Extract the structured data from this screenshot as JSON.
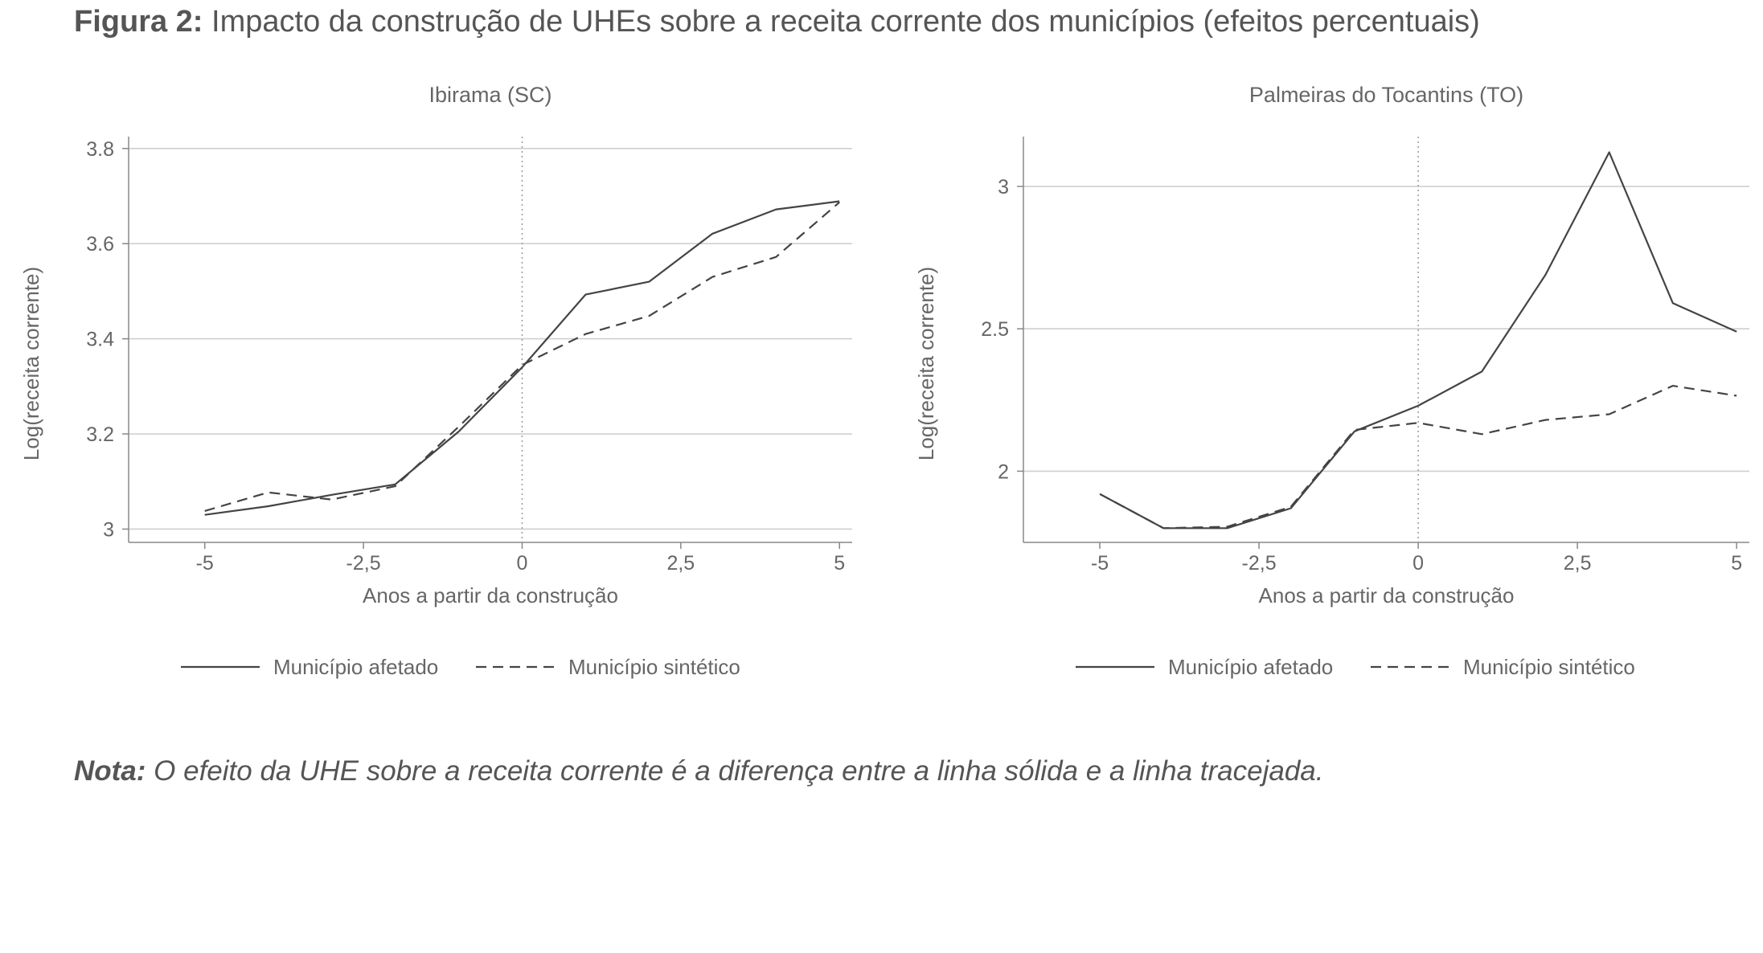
{
  "figure": {
    "title_label": "Figura 2:",
    "title_text": "Impacto da construção de UHEs sobre a receita corrente dos municípios (efeitos percentuais)"
  },
  "note": {
    "label": "Nota:",
    "text": "O efeito da UHE sobre a receita corrente é a diferença entre a linha sólida e a linha tracejada."
  },
  "chart_data": [
    {
      "type": "line",
      "title": "Ibirama (SC)",
      "xlabel": "Anos a partir da construção",
      "ylabel": "Log(receita corrente)",
      "xlim": [
        -6.2,
        5.2
      ],
      "ylim": [
        2.972,
        3.825
      ],
      "xticks": [
        -5,
        -2.5,
        0,
        2.5,
        5
      ],
      "xtick_labels": [
        "-5",
        "-2,5",
        "0",
        "2,5",
        "5"
      ],
      "yticks": [
        3,
        3.2,
        3.4,
        3.6,
        3.8
      ],
      "ytick_labels": [
        "3",
        "3.2",
        "3.4",
        "3.6",
        "3.8"
      ],
      "vline_x": 0,
      "grid": "horizontal",
      "legend_position": "bottom",
      "x": [
        -5,
        -4,
        -3,
        -2,
        -1,
        0,
        1,
        2,
        3,
        4,
        5
      ],
      "series": [
        {
          "name": "Município afetado",
          "style": "solid",
          "values": [
            3.03,
            3.048,
            3.072,
            3.094,
            3.205,
            3.34,
            3.493,
            3.52,
            3.621,
            3.672,
            3.689
          ]
        },
        {
          "name": "Município sintético",
          "style": "dashed",
          "values": [
            3.038,
            3.077,
            3.062,
            3.09,
            3.215,
            3.345,
            3.41,
            3.448,
            3.53,
            3.572,
            3.687
          ]
        }
      ]
    },
    {
      "type": "line",
      "title": "Palmeiras do Tocantins (TO)",
      "xlabel": "Anos a partir da construção",
      "ylabel": "Log(receita corrente)",
      "xlim": [
        -6.2,
        5.2
      ],
      "ylim": [
        1.75,
        3.175
      ],
      "xticks": [
        -5,
        -2.5,
        0,
        2.5,
        5
      ],
      "xtick_labels": [
        "-5",
        "-2,5",
        "0",
        "2,5",
        "5"
      ],
      "yticks": [
        2,
        2.5,
        3
      ],
      "ytick_labels": [
        "2",
        "2.5",
        "3"
      ],
      "vline_x": 0,
      "grid": "horizontal",
      "legend_position": "bottom",
      "x": [
        -5,
        -4,
        -3,
        -2,
        -1,
        0,
        1,
        2,
        3,
        4,
        5
      ],
      "series": [
        {
          "name": "Município afetado",
          "style": "solid",
          "values": [
            1.92,
            1.8,
            1.8,
            1.87,
            2.14,
            2.23,
            2.35,
            2.69,
            3.12,
            2.59,
            2.49
          ]
        },
        {
          "name": "Município sintético",
          "style": "dashed",
          "values": [
            1.92,
            1.8,
            1.805,
            1.875,
            2.145,
            2.17,
            2.13,
            2.18,
            2.2,
            2.3,
            2.265
          ]
        }
      ]
    }
  ]
}
